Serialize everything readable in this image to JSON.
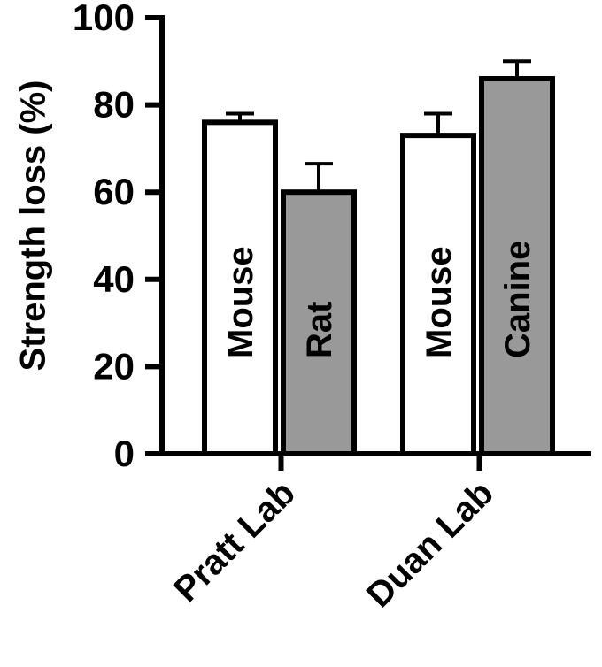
{
  "chart_data": {
    "type": "bar",
    "ylabel": "Strength loss (%)",
    "ylim": [
      0,
      100
    ],
    "yticks": [
      0,
      20,
      40,
      60,
      80,
      100
    ],
    "groups": [
      {
        "name": "Pratt Lab",
        "bars": [
          {
            "label": "Mouse",
            "value": 76,
            "error": 2,
            "color": "#ffffff"
          },
          {
            "label": "Rat",
            "value": 60,
            "error": 6.5,
            "color": "#999999"
          }
        ]
      },
      {
        "name": "Duan Lab",
        "bars": [
          {
            "label": "Mouse",
            "value": 73,
            "error": 5,
            "color": "#ffffff"
          },
          {
            "label": "Canine",
            "value": 86,
            "error": 4,
            "color": "#999999"
          }
        ]
      }
    ]
  }
}
